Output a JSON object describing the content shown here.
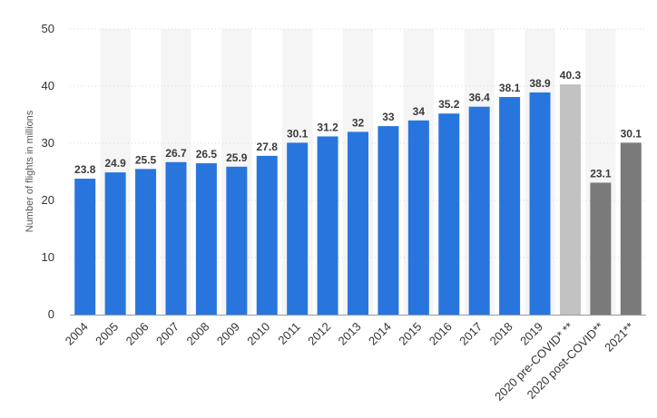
{
  "chart_data": {
    "type": "bar",
    "title": "",
    "xlabel": "",
    "ylabel": "Number of flights in millions",
    "ylim": [
      0,
      50
    ],
    "yticks": [
      0,
      10,
      20,
      30,
      40,
      50
    ],
    "grid": true,
    "categories": [
      "2004",
      "2005",
      "2006",
      "2007",
      "2008",
      "2009",
      "2010",
      "2011",
      "2012",
      "2013",
      "2014",
      "2015",
      "2016",
      "2017",
      "2018",
      "2019",
      "2020 pre-COVID* **",
      "2020 post-COVID**",
      "2021**"
    ],
    "values": [
      23.8,
      24.9,
      25.5,
      26.7,
      26.5,
      25.9,
      27.8,
      30.1,
      31.2,
      32,
      33,
      34,
      35.2,
      36.4,
      38.1,
      38.9,
      40.3,
      23.1,
      30.1
    ],
    "data_labels": [
      "23.8",
      "24.9",
      "25.5",
      "26.7",
      "26.5",
      "25.9",
      "27.8",
      "30.1",
      "31.2",
      "32",
      "33",
      "34",
      "35.2",
      "36.4",
      "38.1",
      "38.9",
      "40.3",
      "23.1",
      "30.1"
    ],
    "bar_colors": [
      "#2876dd",
      "#2876dd",
      "#2876dd",
      "#2876dd",
      "#2876dd",
      "#2876dd",
      "#2876dd",
      "#2876dd",
      "#2876dd",
      "#2876dd",
      "#2876dd",
      "#2876dd",
      "#2876dd",
      "#2876dd",
      "#2876dd",
      "#2876dd",
      "#c2c2c2",
      "#7a7a7a",
      "#7a7a7a"
    ]
  },
  "style": {
    "band_color": "#f5f5f5",
    "grid_color": "#d9d9d9",
    "axis_color": "#999999"
  }
}
